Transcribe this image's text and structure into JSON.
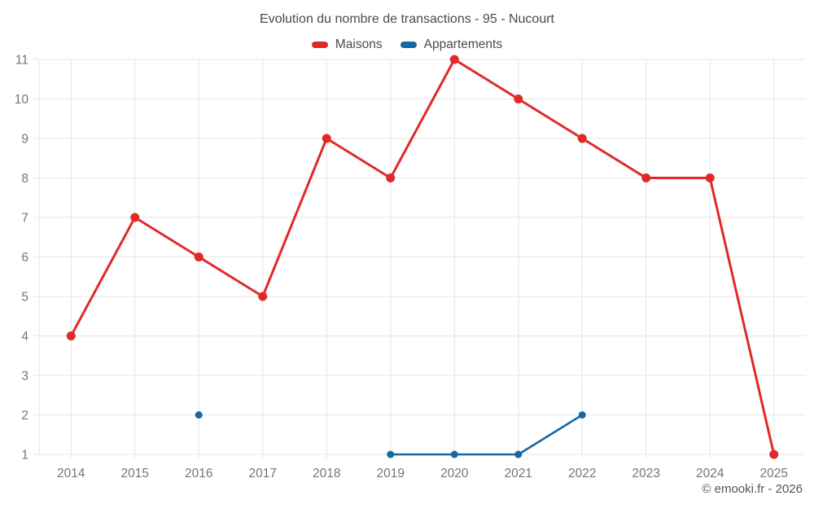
{
  "title": "Evolution du nombre de transactions - 95 - Nucourt",
  "footer": "© emooki.fr - 2026",
  "legend": [
    {
      "label": "Maisons",
      "color": "#e02a2a"
    },
    {
      "label": "Appartements",
      "color": "#1568a1"
    }
  ],
  "chart_data": {
    "type": "line",
    "title": "Evolution du nombre de transactions - 95 - Nucourt",
    "categories": [
      "2014",
      "2015",
      "2016",
      "2017",
      "2018",
      "2019",
      "2020",
      "2021",
      "2022",
      "2023",
      "2024",
      "2025"
    ],
    "series": [
      {
        "name": "Maisons",
        "color": "#e02a2a",
        "values": [
          4,
          7,
          6,
          5,
          9,
          8,
          11,
          10,
          9,
          8,
          8,
          1
        ]
      },
      {
        "name": "Appartements",
        "color": "#1568a1",
        "values": [
          null,
          null,
          2,
          null,
          null,
          1,
          1,
          1,
          2,
          null,
          null,
          null
        ]
      }
    ],
    "ylim": [
      1,
      11
    ],
    "yticks": [
      1,
      2,
      3,
      4,
      5,
      6,
      7,
      8,
      9,
      10,
      11
    ],
    "xlabel": "",
    "ylabel": "",
    "grid": true,
    "legend_position": "top"
  },
  "styles": {
    "background": "#ffffff",
    "grid_color": "#e6e6e6",
    "axis_label_color": "#757575",
    "title_color": "#4a4a4a",
    "footer_color": "#555555"
  }
}
